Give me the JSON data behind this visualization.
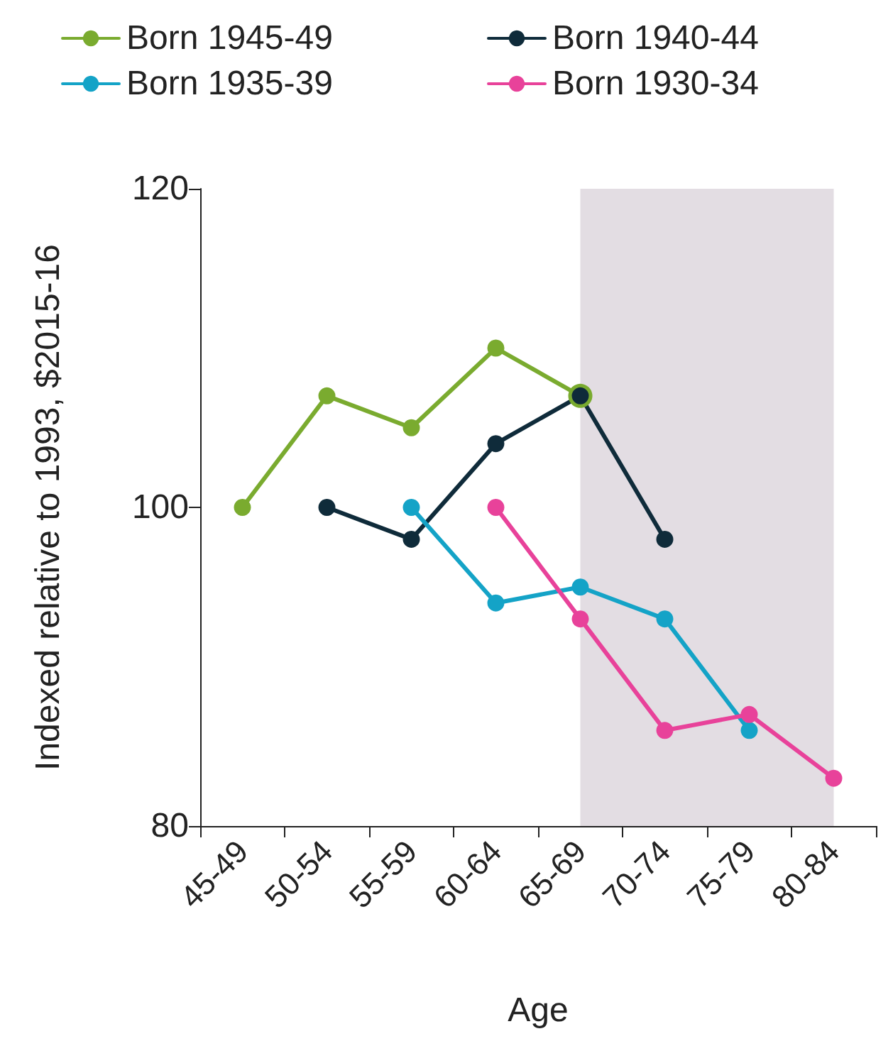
{
  "chart_data": {
    "type": "line",
    "xlabel": "Age",
    "ylabel": "Indexed relative to 1993, $2015-16",
    "categories": [
      "45-49",
      "50-54",
      "55-59",
      "60-64",
      "65-69",
      "70-74",
      "75-79",
      "80-84"
    ],
    "series": [
      {
        "name": "Born 1945-49",
        "color": "#7aab2f",
        "values": [
          100,
          107,
          105,
          110,
          107,
          null,
          null,
          null
        ]
      },
      {
        "name": "Born 1940-44",
        "color": "#0f2b3a",
        "values": [
          null,
          100,
          98,
          104,
          107,
          98,
          null,
          null
        ]
      },
      {
        "name": "Born 1935-39",
        "color": "#14a3c7",
        "values": [
          null,
          null,
          100,
          94,
          95,
          93,
          86,
          null
        ]
      },
      {
        "name": "Born 1930-34",
        "color": "#e8429a",
        "values": [
          null,
          null,
          null,
          100,
          93,
          86,
          87,
          83
        ]
      }
    ],
    "ylim": [
      80,
      120
    ],
    "yticks": [
      80,
      100,
      120
    ],
    "grid": false,
    "legend": "top",
    "marker": "circle",
    "line_style": "solid",
    "bands": [
      {
        "axis": "x",
        "from": "65-69",
        "to": "80-84",
        "color": "#e3dde3"
      }
    ]
  }
}
